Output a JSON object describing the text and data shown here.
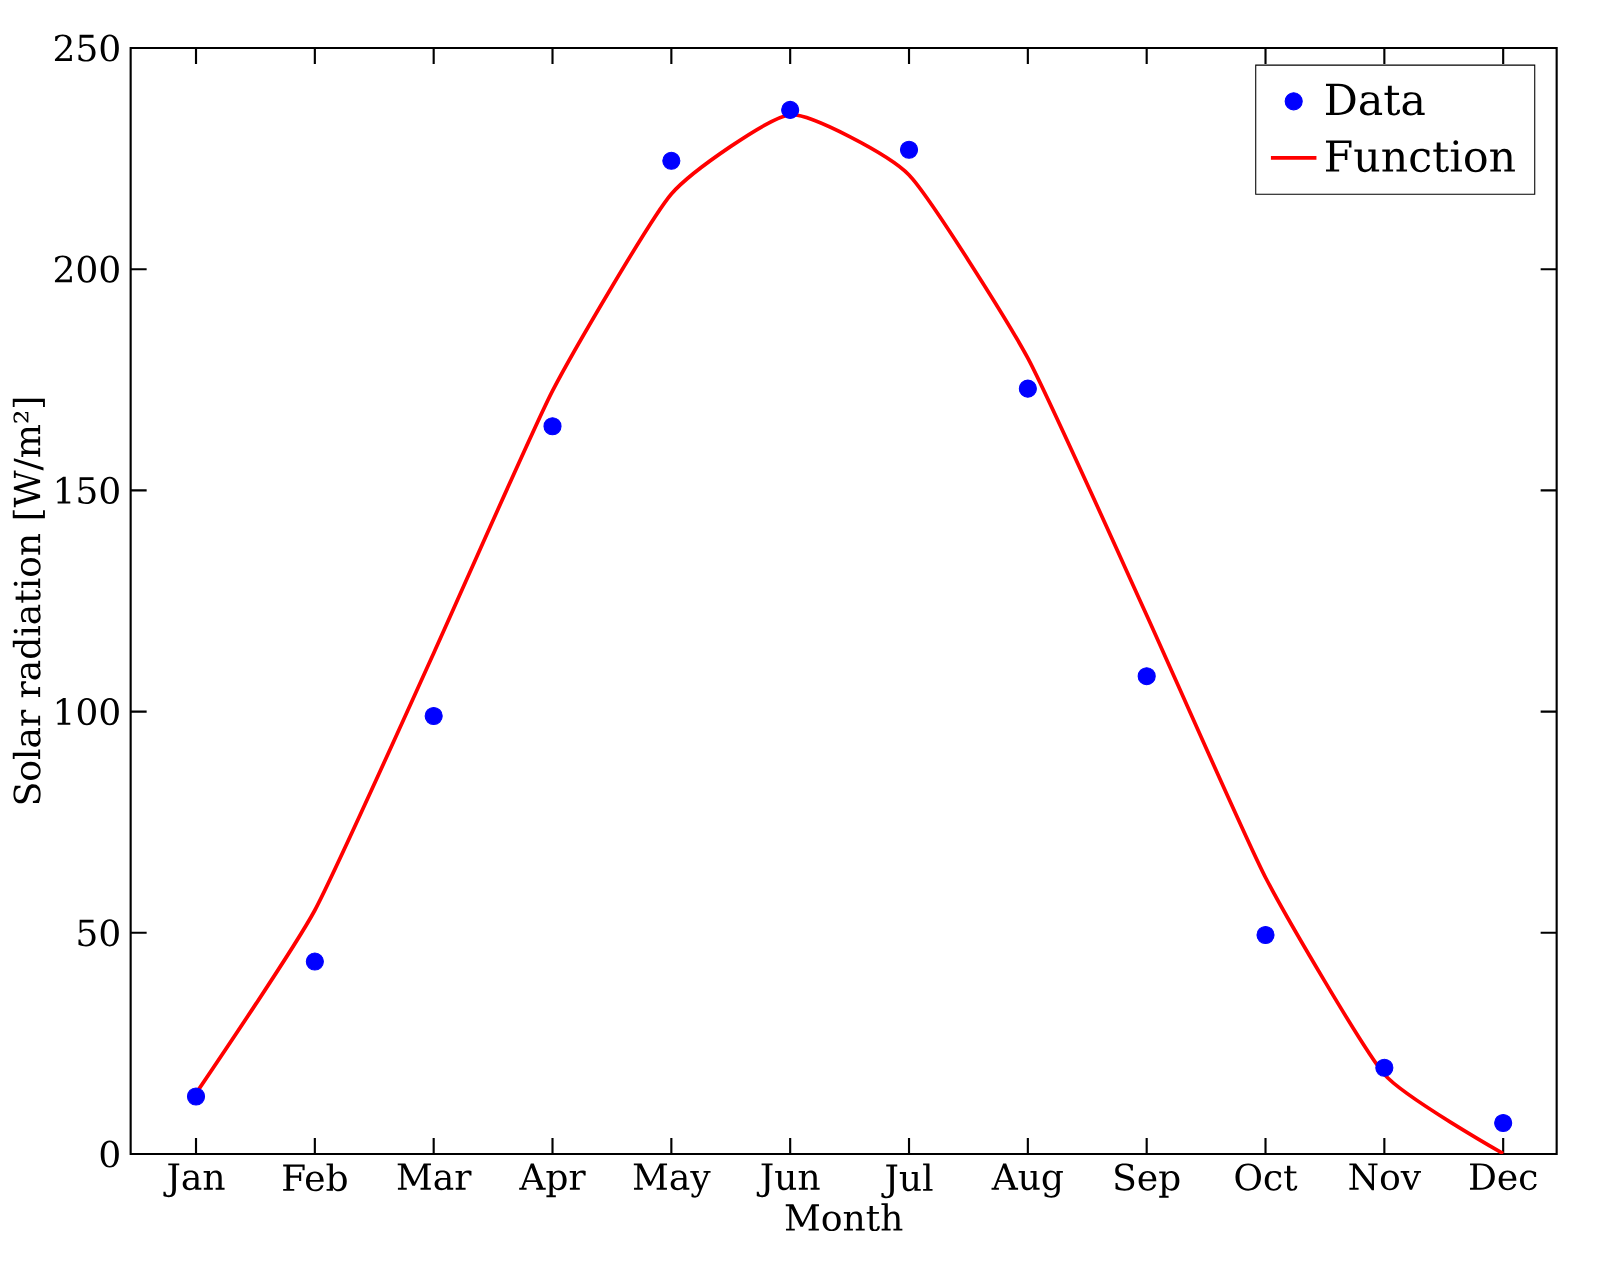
{
  "chart_data": {
    "type": "scatter",
    "xlabel": "Month",
    "ylabel": "Solar radiation [W/m²]",
    "ylim": [
      0,
      250
    ],
    "categories": [
      "Jan",
      "Feb",
      "Mar",
      "Apr",
      "May",
      "Jun",
      "Jul",
      "Aug",
      "Sep",
      "Oct",
      "Nov",
      "Dec"
    ],
    "yticks": [
      0,
      50,
      100,
      150,
      200,
      250
    ],
    "legend": "top right",
    "grid": false,
    "series": [
      {
        "name": "Data",
        "marker": "circle",
        "color": "#0000ff",
        "values": [
          13,
          43.5,
          99,
          164.5,
          224.5,
          236,
          227,
          173,
          108,
          49.5,
          19.5,
          7
        ]
      },
      {
        "name": "Function",
        "type": "line",
        "marker": "none",
        "line_style": "solid",
        "color": "#ff0000",
        "values": [
          13.7,
          55.1,
          113.2,
          172.5,
          217,
          234.9,
          221.3,
          179.9,
          121.8,
          62.5,
          18,
          0.1
        ]
      }
    ]
  }
}
